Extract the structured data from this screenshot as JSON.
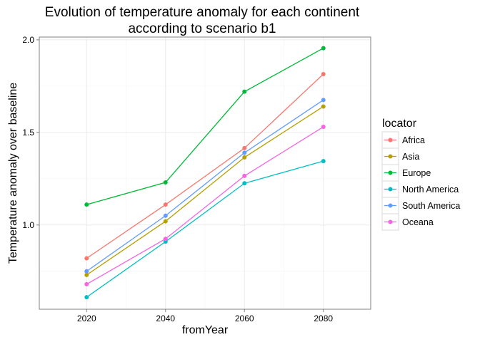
{
  "chart_data": {
    "type": "line",
    "title_lines": [
      "Evolution of temperature anomaly for each continent",
      "according to scenario b1"
    ],
    "xlabel": "fromYear",
    "ylabel": "Temperature anomaly over baseline",
    "x": [
      2020,
      2040,
      2060,
      2080
    ],
    "xlim": [
      2008,
      2092
    ],
    "ylim": [
      0.545,
      2.015
    ],
    "x_ticks": [
      2020,
      2040,
      2060,
      2080
    ],
    "y_ticks": [
      1.0,
      1.5,
      2.0
    ],
    "y_tick_labels": [
      "1.0",
      "1.5",
      "2.0"
    ],
    "grid": true,
    "legend": {
      "title": "locator",
      "position": "right"
    },
    "series": [
      {
        "name": "Africa",
        "color": "#F8766D",
        "values": [
          0.82,
          1.11,
          1.415,
          1.815
        ]
      },
      {
        "name": "Asia",
        "color": "#B79F00",
        "values": [
          0.73,
          1.02,
          1.365,
          1.64
        ]
      },
      {
        "name": "Europe",
        "color": "#00BA38",
        "values": [
          1.11,
          1.23,
          1.72,
          1.955
        ]
      },
      {
        "name": "North America",
        "color": "#00BFC4",
        "values": [
          0.61,
          0.91,
          1.225,
          1.345
        ]
      },
      {
        "name": "South America",
        "color": "#619CFF",
        "values": [
          0.75,
          1.05,
          1.39,
          1.675
        ]
      },
      {
        "name": "Oceana",
        "color": "#F564E3",
        "values": [
          0.68,
          0.925,
          1.265,
          1.53
        ]
      }
    ]
  }
}
